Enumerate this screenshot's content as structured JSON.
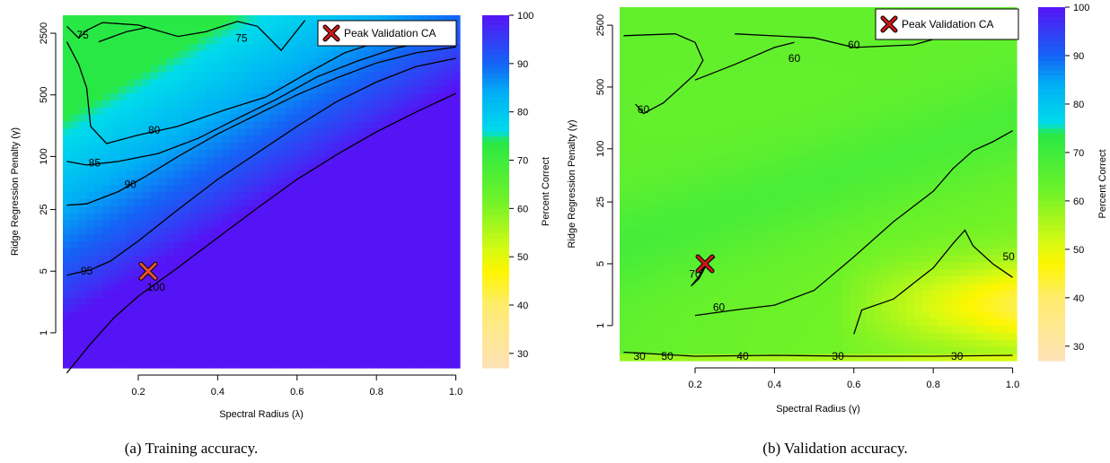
{
  "chart_data": [
    {
      "type": "heatmap",
      "caption": "(a) Training accuracy.",
      "xlabel": "Spectral Radius (λ)",
      "ylabel": "Ridge Regression Penalty (γ)",
      "colorbar_label": "Percent Correct",
      "x_ticks": [
        "0.2",
        "0.4",
        "0.6",
        "0.8",
        "1.0"
      ],
      "x_tick_values": [
        0.2,
        0.4,
        0.6,
        0.8,
        1.0
      ],
      "xlim": [
        0.01,
        1.01
      ],
      "y_ticks": [
        "1",
        "5",
        "25",
        "100",
        "500",
        "2500"
      ],
      "y_tick_values": [
        1,
        5,
        25,
        100,
        500,
        2500
      ],
      "ylim_log": [
        0.4,
        4000
      ],
      "colorbar_ticks": [
        "30",
        "40",
        "50",
        "60",
        "70",
        "80",
        "90",
        "100"
      ],
      "colorbar_tick_values": [
        30,
        40,
        50,
        60,
        70,
        80,
        90,
        100
      ],
      "colorbar_range": [
        27,
        100
      ],
      "contours": [
        {
          "label": "75",
          "value": 75,
          "label_at": [
            0.06,
            2400
          ],
          "points": [
            [
              0.02,
              3000
            ],
            [
              0.05,
              2200
            ],
            [
              0.07,
              2700
            ],
            [
              0.11,
              3300
            ],
            [
              0.2,
              3100
            ],
            [
              0.3,
              2300
            ],
            [
              0.37,
              2600
            ],
            [
              0.45,
              3400
            ],
            [
              0.5,
              3000
            ],
            [
              0.56,
              1600
            ],
            [
              0.62,
              3500
            ]
          ]
        },
        {
          "label": "75",
          "value": 75,
          "label_at": [
            0.46,
            2200
          ],
          "points": [
            [
              0.1,
              2000
            ],
            [
              0.17,
              2600
            ],
            [
              0.22,
              2900
            ]
          ]
        },
        {
          "label": "80",
          "value": 80,
          "label_at": [
            0.24,
            200
          ],
          "points": [
            [
              0.02,
              2000
            ],
            [
              0.05,
              1100
            ],
            [
              0.07,
              600
            ],
            [
              0.08,
              220
            ],
            [
              0.12,
              140
            ],
            [
              0.2,
              175
            ],
            [
              0.3,
              220
            ],
            [
              0.42,
              340
            ],
            [
              0.52,
              470
            ],
            [
              0.62,
              850
            ],
            [
              0.72,
              1500
            ],
            [
              0.82,
              2100
            ],
            [
              0.92,
              2500
            ],
            [
              1.0,
              2700
            ]
          ]
        },
        {
          "label": "85",
          "value": 85,
          "label_at": [
            0.09,
            85
          ],
          "points": [
            [
              0.02,
              88
            ],
            [
              0.07,
              80
            ],
            [
              0.15,
              88
            ],
            [
              0.25,
              108
            ],
            [
              0.35,
              160
            ],
            [
              0.45,
              270
            ],
            [
              0.55,
              450
            ],
            [
              0.65,
              800
            ],
            [
              0.75,
              1200
            ],
            [
              0.85,
              1700
            ],
            [
              0.95,
              2100
            ],
            [
              1.0,
              2200
            ]
          ]
        },
        {
          "label": "90",
          "value": 90,
          "label_at": [
            0.18,
            48
          ],
          "points": [
            [
              0.02,
              28
            ],
            [
              0.07,
              29
            ],
            [
              0.15,
              40
            ],
            [
              0.22,
              60
            ],
            [
              0.3,
              100
            ],
            [
              0.4,
              180
            ],
            [
              0.5,
              300
            ],
            [
              0.6,
              500
            ],
            [
              0.7,
              780
            ],
            [
              0.8,
              1150
            ],
            [
              0.9,
              1500
            ],
            [
              1.0,
              1750
            ]
          ]
        },
        {
          "label": "95",
          "value": 95,
          "label_at": [
            0.07,
            5
          ],
          "points": [
            [
              0.02,
              4.5
            ],
            [
              0.08,
              5.2
            ],
            [
              0.13,
              6.5
            ],
            [
              0.2,
              11
            ],
            [
              0.3,
              25
            ],
            [
              0.4,
              55
            ],
            [
              0.5,
              110
            ],
            [
              0.6,
              220
            ],
            [
              0.7,
              420
            ],
            [
              0.8,
              700
            ],
            [
              0.9,
              1050
            ],
            [
              1.0,
              1300
            ]
          ]
        },
        {
          "label": "100",
          "value": 100,
          "label_at": [
            0.245,
            3.3
          ],
          "points": [
            [
              0.02,
              0.35
            ],
            [
              0.08,
              0.75
            ],
            [
              0.14,
              1.5
            ],
            [
              0.2,
              2.6
            ],
            [
              0.3,
              5.5
            ],
            [
              0.4,
              12
            ],
            [
              0.5,
              26
            ],
            [
              0.6,
              55
            ],
            [
              0.7,
              105
            ],
            [
              0.8,
              190
            ],
            [
              0.9,
              320
            ],
            [
              1.0,
              520
            ]
          ]
        }
      ],
      "peak": {
        "x": 0.225,
        "y": 5
      },
      "legend": {
        "label": "Peak Validation CA",
        "position": "top-right"
      }
    },
    {
      "type": "heatmap",
      "caption": "(b) Validation accuracy.",
      "xlabel": "Spectral Radius (γ)",
      "ylabel": "Ridge Regression Penalty (γ)",
      "colorbar_label": "Percent Correct",
      "x_ticks": [
        "0.2",
        "0.4",
        "0.6",
        "0.8",
        "1.0"
      ],
      "x_tick_values": [
        0.2,
        0.4,
        0.6,
        0.8,
        1.0
      ],
      "xlim": [
        0.01,
        1.01
      ],
      "y_ticks": [
        "1",
        "5",
        "25",
        "100",
        "500",
        "2500"
      ],
      "y_tick_values": [
        1,
        5,
        25,
        100,
        500,
        2500
      ],
      "ylim_log": [
        0.4,
        4000
      ],
      "colorbar_ticks": [
        "30",
        "40",
        "50",
        "60",
        "70",
        "80",
        "90",
        "100"
      ],
      "colorbar_tick_values": [
        30,
        40,
        50,
        60,
        70,
        80,
        90,
        100
      ],
      "colorbar_range": [
        27,
        100
      ],
      "contours": [
        {
          "label": "60",
          "value": 60,
          "label_at": [
            0.45,
            1050
          ],
          "points": [
            [
              0.02,
              1900
            ],
            [
              0.15,
              2000
            ],
            [
              0.2,
              1600
            ],
            [
              0.22,
              1000
            ],
            [
              0.2,
              700
            ],
            [
              0.12,
              330
            ],
            [
              0.07,
              250
            ],
            [
              0.05,
              320
            ]
          ]
        },
        {
          "label": "60",
          "value": 60,
          "label_at": [
            0.07,
            280
          ],
          "points": [
            [
              0.3,
              2000
            ],
            [
              0.5,
              1800
            ],
            [
              0.6,
              1400
            ],
            [
              0.75,
              1500
            ],
            [
              0.85,
              2000
            ]
          ]
        },
        {
          "label": "60",
          "value": 60,
          "label_at": [
            0.6,
            1500
          ],
          "points": [
            [
              0.2,
              600
            ],
            [
              0.3,
              900
            ],
            [
              0.4,
              1400
            ],
            [
              0.45,
              1600
            ]
          ]
        },
        {
          "label": "60",
          "value": 60,
          "label_at": [
            0.96,
            2000
          ],
          "points": [
            [
              0.9,
              1800
            ],
            [
              0.95,
              2200
            ],
            [
              1.0,
              2400
            ]
          ]
        },
        {
          "label": "60",
          "value": 60,
          "label_at": [
            0.26,
            1.6
          ],
          "points": [
            [
              0.2,
              1.3
            ],
            [
              0.3,
              1.5
            ],
            [
              0.4,
              1.7
            ],
            [
              0.5,
              2.5
            ],
            [
              0.6,
              6
            ],
            [
              0.7,
              15
            ],
            [
              0.8,
              33
            ],
            [
              0.85,
              60
            ],
            [
              0.9,
              95
            ],
            [
              0.95,
              120
            ],
            [
              1.0,
              160
            ]
          ]
        },
        {
          "label": "50",
          "value": 50,
          "label_at": [
            0.99,
            6
          ],
          "points": [
            [
              0.6,
              0.8
            ],
            [
              0.62,
              1.5
            ],
            [
              0.7,
              2.0
            ],
            [
              0.75,
              3.0
            ],
            [
              0.8,
              4.5
            ],
            [
              0.85,
              8.5
            ],
            [
              0.88,
              12
            ],
            [
              0.9,
              8
            ],
            [
              0.95,
              5
            ],
            [
              1.0,
              3.5
            ]
          ]
        },
        {
          "label": "70",
          "value": 70,
          "label_at": [
            0.2,
            3.8
          ],
          "points": [
            [
              0.19,
              2.8
            ],
            [
              0.21,
              3.6
            ],
            [
              0.23,
              5.2
            ],
            [
              0.25,
              6.0
            ],
            [
              0.23,
              5.0
            ],
            [
              0.21,
              3.4
            ],
            [
              0.19,
              2.8
            ]
          ]
        },
        {
          "label": "30",
          "value": 30,
          "label_at": [
            0.06,
            0.45
          ],
          "points": [
            [
              0.02,
              0.5
            ],
            [
              0.2,
              0.45
            ],
            [
              0.4,
              0.46
            ],
            [
              0.6,
              0.45
            ],
            [
              0.8,
              0.45
            ],
            [
              1.0,
              0.46
            ]
          ]
        },
        {
          "label": "50",
          "value": 50,
          "label_at": [
            0.13,
            0.45
          ],
          "points": []
        },
        {
          "label": "40",
          "value": 40,
          "label_at": [
            0.32,
            0.45
          ],
          "points": []
        },
        {
          "label": "30",
          "value": 30,
          "label_at": [
            0.56,
            0.45
          ],
          "points": []
        },
        {
          "label": "30",
          "value": 30,
          "label_at": [
            0.86,
            0.45
          ],
          "points": []
        }
      ],
      "peak": {
        "x": 0.225,
        "y": 5
      },
      "legend": {
        "label": "Peak Validation CA",
        "position": "top-right"
      }
    }
  ]
}
